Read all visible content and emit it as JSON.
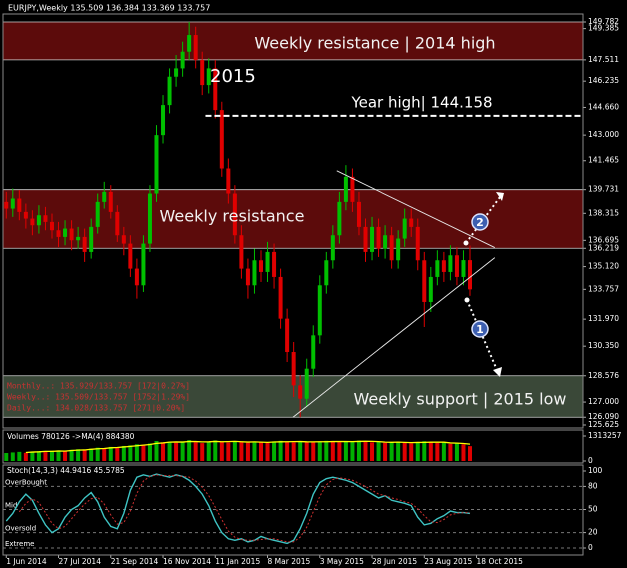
{
  "header": "EURJPY,Weekly  135.509 136.384 133.369 133.757",
  "info": [
    "Monthly..: 135.929/133.757 [172|0.27%]",
    "Weekly..: 135.509/133.757 [1752|1.29%]",
    "Daily...: 134.028/133.757 [271|0.20%]"
  ],
  "chart_data": [
    {
      "type": "candlestick",
      "up_color": "#00c000",
      "down_color": "#e00000",
      "xlim": [
        -0.5,
        88.3
      ],
      "ylim": [
        125.625,
        149.782
      ],
      "yticks": [
        149.782,
        149.385,
        147.511,
        146.235,
        {
          "value": 144.66,
          "label": "144.660"
        },
        {
          "value": 143,
          "label": "143.000"
        },
        141.465,
        139.731,
        138.315,
        136.695,
        136.219,
        {
          "value": 135.12,
          "label": "135.120"
        },
        133.757,
        {
          "value": 131.97,
          "label": "131.970"
        },
        {
          "value": 130.35,
          "label": "130.350"
        },
        128.576,
        {
          "value": 127,
          "label": "127.000"
        },
        {
          "value": 126.09,
          "label": "126.090"
        },
        125.625
      ],
      "open": [
        139.0,
        138.6,
        139.2,
        138.4,
        138.0,
        137.6,
        138.2,
        137.8,
        137.3,
        136.9,
        137.4,
        136.7,
        136.9,
        136.0,
        137.5,
        139.0,
        139.6,
        138.4,
        137.0,
        136.5,
        135.0,
        134.0,
        136.5,
        139.5,
        143.0,
        144.8,
        146.5,
        147.0,
        148.0,
        149.0,
        147.5,
        146.0,
        147.0,
        144.5,
        141.0,
        139.5,
        137.0,
        135.0,
        134.0,
        135.5,
        134.8,
        136.0,
        134.5,
        132.0,
        130.0,
        128.0,
        127.2,
        129.0,
        131.0,
        134.0,
        135.5,
        137.0,
        139.0,
        140.5,
        139.0,
        137.5,
        136.0,
        137.5,
        136.2,
        137.0,
        135.5,
        136.8,
        138.0,
        137.5,
        135.5,
        133.0,
        134.5,
        135.5,
        134.8,
        135.8,
        134.5,
        135.509
      ],
      "high": [
        139.6,
        139.8,
        139.7,
        138.9,
        138.5,
        138.8,
        138.7,
        138.3,
        137.8,
        137.9,
        137.9,
        137.5,
        137.4,
        138.0,
        139.5,
        140.2,
        140.0,
        138.8,
        137.5,
        137.0,
        135.6,
        137.0,
        140.0,
        143.6,
        145.4,
        147.0,
        147.8,
        148.6,
        149.782,
        149.5,
        148.0,
        147.6,
        147.5,
        145.0,
        141.6,
        140.0,
        137.6,
        135.6,
        136.2,
        136.1,
        136.6,
        136.5,
        135.0,
        132.6,
        130.6,
        128.6,
        129.6,
        131.6,
        134.6,
        136.0,
        137.6,
        139.6,
        141.2,
        141.0,
        139.6,
        138.0,
        138.1,
        138.0,
        137.6,
        137.5,
        137.3,
        138.6,
        138.6,
        138.0,
        136.0,
        135.1,
        136.1,
        136.0,
        136.4,
        136.3,
        136.1,
        136.384
      ],
      "low": [
        138.0,
        138.1,
        137.9,
        137.4,
        137.0,
        137.1,
        137.3,
        136.8,
        136.3,
        136.4,
        136.1,
        136.2,
        135.4,
        135.6,
        137.1,
        138.6,
        138.0,
        136.6,
        135.8,
        134.5,
        133.2,
        133.6,
        136.0,
        139.0,
        142.5,
        144.3,
        145.9,
        146.5,
        147.5,
        147.0,
        145.4,
        145.5,
        144.0,
        140.5,
        138.9,
        136.5,
        134.4,
        133.2,
        133.5,
        134.2,
        134.2,
        133.8,
        131.4,
        129.4,
        127.3,
        126.09,
        126.7,
        128.5,
        130.5,
        133.5,
        135.0,
        136.5,
        138.5,
        138.4,
        137.0,
        135.4,
        135.5,
        135.7,
        135.6,
        135.0,
        135.0,
        136.3,
        136.9,
        134.9,
        131.5,
        132.4,
        134.0,
        134.2,
        134.3,
        134.0,
        134.0,
        133.369
      ],
      "close": [
        138.6,
        139.2,
        138.4,
        138.0,
        137.6,
        138.2,
        137.8,
        137.3,
        136.9,
        137.4,
        136.7,
        136.9,
        136.0,
        137.5,
        139.0,
        139.6,
        138.4,
        137.0,
        136.5,
        135.0,
        134.0,
        136.5,
        139.5,
        143.0,
        144.8,
        146.5,
        147.0,
        148.0,
        149.0,
        147.5,
        146.0,
        147.0,
        144.5,
        141.0,
        139.5,
        137.0,
        135.0,
        134.0,
        135.5,
        134.8,
        136.0,
        134.5,
        132.0,
        130.0,
        128.0,
        127.2,
        129.0,
        131.0,
        134.0,
        135.5,
        137.0,
        139.0,
        140.5,
        139.0,
        137.5,
        136.0,
        137.5,
        136.2,
        137.0,
        135.5,
        136.8,
        138.0,
        137.5,
        135.5,
        133.0,
        134.5,
        135.5,
        134.8,
        135.8,
        134.5,
        135.509,
        133.757
      ],
      "zones": [
        {
          "range": [
            147.511,
            149.782
          ],
          "label": "Weekly resistance | 2014 high",
          "color": "#5c0b0b"
        },
        {
          "range": [
            136.219,
            139.731
          ],
          "label": "Weekly resistance",
          "color": "#5c0b0b"
        },
        {
          "range": [
            126.09,
            128.576
          ],
          "label": "Weekly support | 2015 low",
          "color": "#3a4838"
        }
      ],
      "hline": {
        "value": 144.158,
        "label": "Year high| 144.158",
        "from": 30.5
      },
      "note": "2015",
      "trendlines": [
        {
          "x": [
            43.9,
            74.8
          ],
          "y": [
            126.09,
            135.66
          ]
        },
        {
          "x": [
            50.6,
            74.8
          ],
          "y": [
            140.86,
            136.26
          ]
        }
      ],
      "markers": [
        "1",
        "2"
      ]
    },
    {
      "type": "bar",
      "title": "Volumes 780126 ->MA(4) 884380",
      "up_color": "#00b000",
      "down_color": "#e00000",
      "ma_color": "#ffff00",
      "xlim": [
        -0.5,
        88.3
      ],
      "ylim": [
        0,
        1313257
      ],
      "yticks": [
        0,
        1313257
      ],
      "values": [
        420000,
        450000,
        480000,
        430000,
        500000,
        520000,
        470000,
        540000,
        560000,
        510000,
        590000,
        620000,
        600000,
        650000,
        700000,
        680000,
        740000,
        720000,
        790000,
        820000,
        880000,
        850000,
        920000,
        1050000,
        980000,
        1010000,
        960000,
        1030000,
        1100000,
        990000,
        940000,
        1000000,
        1080000,
        1020000,
        970000,
        1050000,
        1000000,
        960000,
        1010000,
        990000,
        950000,
        1030000,
        1060000,
        1000000,
        980000,
        1040000,
        1010000,
        970000,
        1020000,
        1060000,
        1030000,
        990000,
        1000000,
        1050000,
        1070000,
        1020000,
        980000,
        1000000,
        960000,
        990000,
        1020000,
        950000,
        930000,
        1000000,
        1040000,
        980000,
        950000,
        970000,
        900000,
        930000,
        880000,
        780126
      ],
      "ma": [
        null,
        null,
        null,
        445000,
        470000,
        482000,
        505000,
        507500,
        522500,
        520000,
        550000,
        570000,
        580000,
        615000,
        642500,
        657500,
        692500,
        710000,
        737500,
        767500,
        802500,
        835000,
        867500,
        925000,
        950000,
        990000,
        1000000,
        995000,
        1025000,
        1020000,
        1005000,
        1007500,
        1027500,
        1010000,
        1017500,
        1030000,
        1010000,
        996000,
        1005000,
        990000,
        978000,
        997500,
        1008000,
        1010000,
        1018000,
        1020000,
        1007500,
        1005000,
        1010000,
        1012500,
        1020000,
        1025000,
        1020000,
        1017500,
        1027500,
        1035000,
        1030000,
        1017500,
        990000,
        982500,
        992500,
        980000,
        965000,
        975000,
        980000,
        988000,
        992000,
        987000,
        950000,
        937500,
        920000,
        884380
      ]
    },
    {
      "type": "line",
      "title": "Stoch(14,3,3) 44.9416 45.5785",
      "xlim": [
        -0.5,
        88.3
      ],
      "ylim": [
        0,
        100
      ],
      "yticks": [
        0,
        20,
        50,
        80,
        100
      ],
      "levels": [
        {
          "value": 80,
          "label": "OverBought"
        },
        {
          "value": 50,
          "label": "Mid"
        },
        {
          "value": 20,
          "label": "Oversold"
        },
        {
          "value": 0,
          "label": "Extreme"
        }
      ],
      "xticks": [
        {
          "value": 0,
          "label": "1 Jun 2014"
        },
        {
          "value": 8,
          "label": "27 Jul 2014"
        },
        {
          "value": 16,
          "label": "21 Sep 2014"
        },
        {
          "value": 24,
          "label": "16 Nov 2014"
        },
        {
          "value": 32,
          "label": "11 Jan 2015"
        },
        {
          "value": 40,
          "label": "8 Mar 2015"
        },
        {
          "value": 48,
          "label": "3 May 2015"
        },
        {
          "value": 56,
          "label": "28 Jun 2015"
        },
        {
          "value": 64,
          "label": "23 Aug 2015"
        },
        {
          "value": 72,
          "label": "18 Oct 2015"
        }
      ],
      "series": [
        {
          "color": "#3fc4c4",
          "dash": false,
          "values": [
            35,
            45,
            60,
            70,
            62,
            45,
            30,
            20,
            25,
            40,
            50,
            55,
            65,
            72,
            60,
            40,
            28,
            25,
            45,
            75,
            92,
            95,
            93,
            96,
            94,
            92,
            95,
            93,
            88,
            80,
            70,
            55,
            35,
            20,
            12,
            10,
            12,
            8,
            10,
            15,
            12,
            10,
            8,
            6,
            10,
            25,
            45,
            70,
            85,
            90,
            92,
            90,
            88,
            85,
            80,
            75,
            70,
            65,
            68,
            62,
            60,
            58,
            55,
            40,
            30,
            32,
            38,
            42,
            48,
            46,
            46,
            44.9416
          ]
        },
        {
          "color": "#d03030",
          "dash": true,
          "values": [
            null,
            null,
            47,
            58,
            64,
            59,
            46,
            32,
            25,
            28,
            38,
            48,
            57,
            64,
            66,
            57,
            43,
            31,
            33,
            48,
            71,
            87,
            93,
            95,
            94,
            94,
            94,
            93,
            92,
            87,
            79,
            68,
            53,
            37,
            22,
            14,
            11,
            10,
            10,
            11,
            12,
            12,
            10,
            8,
            8,
            14,
            27,
            47,
            67,
            82,
            89,
            91,
            90,
            88,
            84,
            80,
            75,
            70,
            68,
            65,
            63,
            60,
            58,
            51,
            42,
            34,
            33,
            37,
            43,
            45,
            46,
            45.5785
          ]
        }
      ]
    }
  ]
}
